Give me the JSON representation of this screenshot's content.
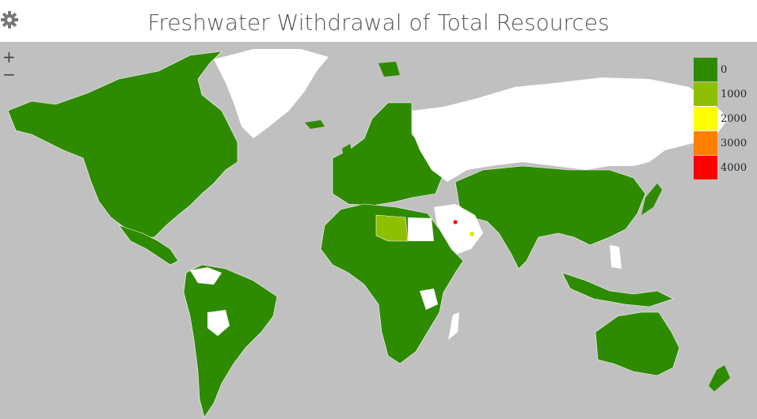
{
  "header": {
    "title": "Freshwater Withdrawal of Total Resources",
    "settings_icon": "gear-icon"
  },
  "controls": {
    "zoom_in": "+",
    "zoom_out": "−"
  },
  "legend": {
    "items": [
      {
        "label": "0",
        "color": "#2e8b00"
      },
      {
        "label": "1000",
        "color": "#8dc000"
      },
      {
        "label": "2000",
        "color": "#ffff00"
      },
      {
        "label": "3000",
        "color": "#ff7f00"
      },
      {
        "label": "4000",
        "color": "#ff0000"
      }
    ]
  },
  "colors": {
    "ocean": "#c0c0c0",
    "no_data": "#ffffff",
    "low": "#2e8b00",
    "mid": "#8dc000",
    "high": "#ff0000"
  }
}
